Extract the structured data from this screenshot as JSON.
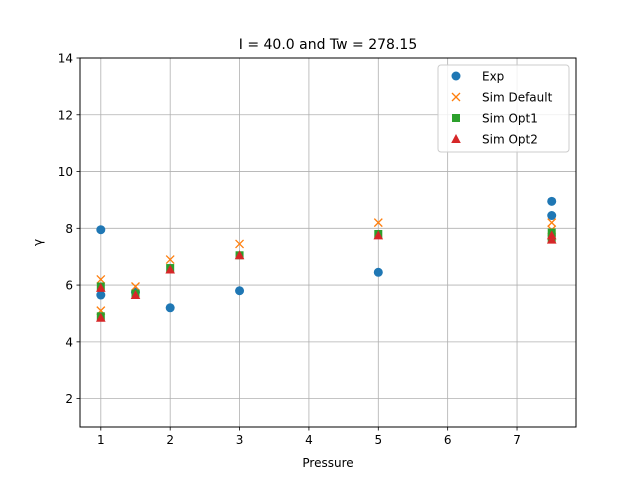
{
  "chart_data": {
    "type": "scatter",
    "title": "I = 40.0 and Tw = 278.15",
    "xlabel": "Pressure",
    "ylabel": "γ",
    "xlim": [
      0.7,
      7.85
    ],
    "ylim": [
      1,
      14
    ],
    "xticks": [
      1,
      2,
      3,
      4,
      5,
      6,
      7
    ],
    "yticks": [
      2,
      4,
      6,
      8,
      10,
      12,
      14
    ],
    "grid": true,
    "legend_position": "top-right",
    "series": [
      {
        "name": "Exp",
        "marker": "circle",
        "color": "#1f77b4",
        "points": [
          {
            "x": 1,
            "y": 7.95
          },
          {
            "x": 1,
            "y": 5.65
          },
          {
            "x": 1.5,
            "y": 5.75
          },
          {
            "x": 2,
            "y": 5.2
          },
          {
            "x": 3,
            "y": 5.8
          },
          {
            "x": 5,
            "y": 6.45
          },
          {
            "x": 7.5,
            "y": 8.95
          },
          {
            "x": 7.5,
            "y": 8.45
          }
        ]
      },
      {
        "name": "Sim Default",
        "marker": "x",
        "color": "#ff7f0e",
        "points": [
          {
            "x": 1,
            "y": 6.2
          },
          {
            "x": 1,
            "y": 5.1
          },
          {
            "x": 1.5,
            "y": 5.95
          },
          {
            "x": 2,
            "y": 6.9
          },
          {
            "x": 3,
            "y": 7.45
          },
          {
            "x": 5,
            "y": 8.2
          },
          {
            "x": 7.5,
            "y": 8.2
          },
          {
            "x": 7.5,
            "y": 7.95
          }
        ]
      },
      {
        "name": "Sim Opt1",
        "marker": "square",
        "color": "#2ca02c",
        "points": [
          {
            "x": 1,
            "y": 5.95
          },
          {
            "x": 1,
            "y": 4.9
          },
          {
            "x": 1.5,
            "y": 5.7
          },
          {
            "x": 2,
            "y": 6.6
          },
          {
            "x": 3,
            "y": 7.05
          },
          {
            "x": 5,
            "y": 7.8
          },
          {
            "x": 7.5,
            "y": 7.85
          },
          {
            "x": 7.5,
            "y": 7.65
          }
        ]
      },
      {
        "name": "Sim Opt2",
        "marker": "triangle",
        "color": "#d62728",
        "points": [
          {
            "x": 1,
            "y": 5.9
          },
          {
            "x": 1,
            "y": 4.85
          },
          {
            "x": 1.5,
            "y": 5.65
          },
          {
            "x": 2,
            "y": 6.55
          },
          {
            "x": 3,
            "y": 7.05
          },
          {
            "x": 5,
            "y": 7.75
          },
          {
            "x": 7.5,
            "y": 7.75
          },
          {
            "x": 7.5,
            "y": 7.6
          }
        ]
      }
    ]
  }
}
